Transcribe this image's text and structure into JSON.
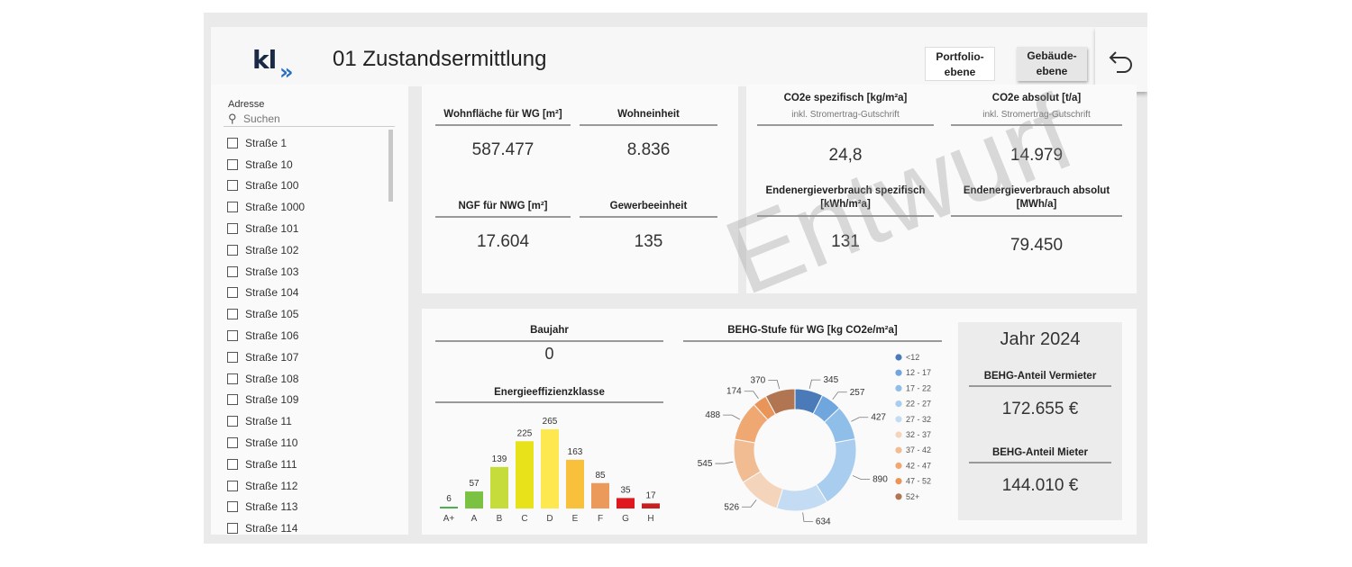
{
  "header": {
    "logo_text": "kl",
    "logo_arrows": "»",
    "title": "01 Zustandsermittlung",
    "portfolio_button": "Portfolio-\nebene",
    "gebaeude_button": "Gebäude-\nebene",
    "back_icon": "undo-arrow-icon"
  },
  "sidebar": {
    "label": "Adresse",
    "search_placeholder": "Suchen",
    "items": [
      "Straße 1",
      "Straße 10",
      "Straße 100",
      "Straße 1000",
      "Straße 101",
      "Straße 102",
      "Straße 103",
      "Straße 104",
      "Straße 105",
      "Straße 106",
      "Straße 107",
      "Straße 108",
      "Straße 109",
      "Straße 11",
      "Straße 110",
      "Straße 111",
      "Straße 112",
      "Straße 113",
      "Straße 114"
    ]
  },
  "kpis_left": {
    "wohnflaeche_title": "Wohnfläche für WG [m²]",
    "wohnflaeche_value": "587.477",
    "wohneinheit_title": "Wohneinheit",
    "wohneinheit_value": "8.836",
    "ngf_title": "NGF für NWG [m²]",
    "ngf_value": "17.604",
    "gewerbe_title": "Gewerbeeinheit",
    "gewerbe_value": "135"
  },
  "kpis_right": {
    "co2_spez_title": "CO2e spezifisch [kg/m²a]",
    "co2_spez_sub": "inkl. Stromertrag-Gutschrift",
    "co2_spez_value": "24,8",
    "co2_abs_title": "CO2e absolut [t/a]",
    "co2_abs_sub": "inkl. Stromertrag-Gutschrift",
    "co2_abs_value": "14.979",
    "end_spez_title": "Endenergieverbrauch spezifisch\n[kWh/m²a]",
    "end_spez_value": "131",
    "end_abs_title": "Endenergieverbrauch absolut\n[MWh/a]",
    "end_abs_value": "79.450"
  },
  "baujahr": {
    "title": "Baujahr",
    "value": "0"
  },
  "effizienz_title": "Energieeffizienzklasse",
  "behg_title": "BEHG-Stufe für WG [kg CO2e/m²a]",
  "jahr_box": {
    "title": "Jahr 2024",
    "vermieter_title": "BEHG-Anteil Vermieter",
    "vermieter_value": "172.655 €",
    "mieter_title": "BEHG-Anteil Mieter",
    "mieter_value": "144.010 €"
  },
  "watermark": "Entwurf",
  "chart_data": [
    {
      "type": "bar",
      "title": "Energieeffizienzklasse",
      "categories": [
        "A+",
        "A",
        "B",
        "C",
        "D",
        "E",
        "F",
        "G",
        "H"
      ],
      "values": [
        6,
        57,
        139,
        225,
        265,
        163,
        85,
        35,
        17
      ],
      "colors": [
        "#4caf50",
        "#7cc242",
        "#c5dc3a",
        "#e8e21a",
        "#fde84f",
        "#f9c03b",
        "#eb9a5b",
        "#e0181f",
        "#c81f1f"
      ]
    },
    {
      "type": "pie",
      "title": "BEHG-Stufe für WG [kg CO2e/m²a]",
      "categories": [
        "<12",
        "12 - 17",
        "17 - 22",
        "22 - 27",
        "27 - 32",
        "32 - 37",
        "37 - 42",
        "42 - 47",
        "47 - 52",
        "52+"
      ],
      "values": [
        345,
        257,
        427,
        890,
        634,
        526,
        545,
        488,
        174,
        370
      ],
      "colors": [
        "#4a7ab8",
        "#6ea6dd",
        "#8fbfe9",
        "#a9cdee",
        "#c4dcf3",
        "#f5d4bc",
        "#f2bc93",
        "#f0a873",
        "#e9955a",
        "#b17551"
      ]
    }
  ]
}
